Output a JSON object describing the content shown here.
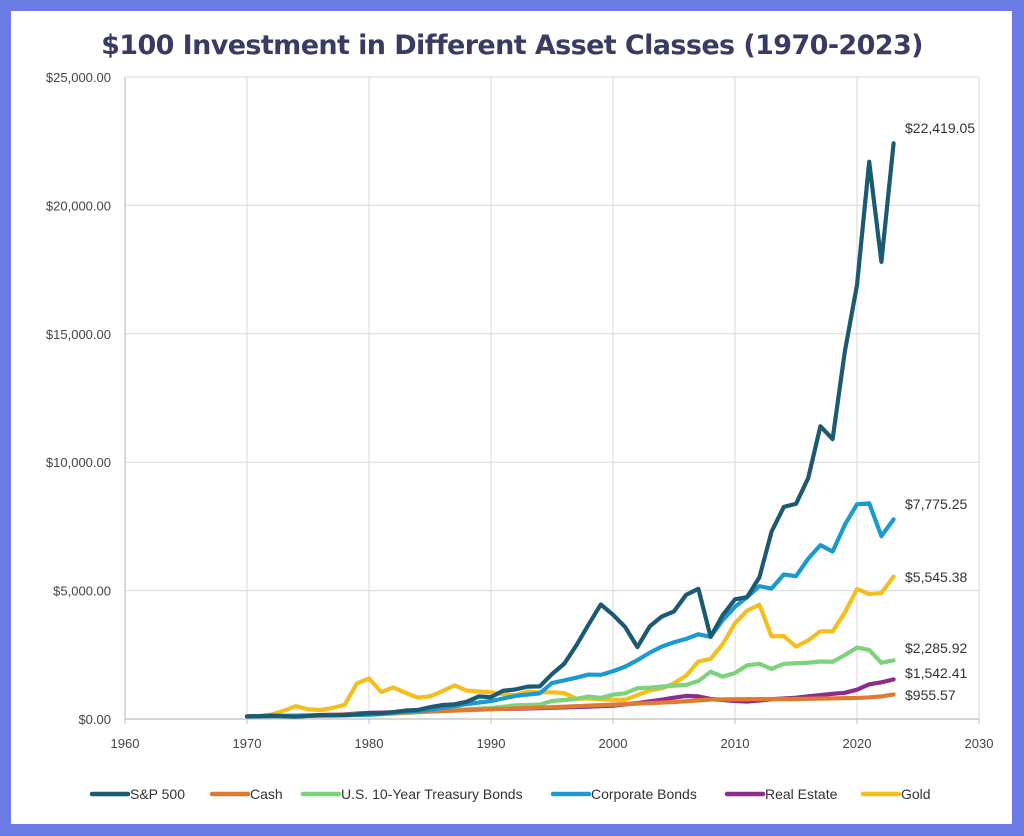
{
  "chart_data": {
    "type": "line",
    "title": "$100 Investment in Different Asset Classes (1970-2023)",
    "xlabel": "",
    "ylabel": "",
    "xlim": [
      1960,
      2030
    ],
    "ylim": [
      0,
      25000
    ],
    "xticks": [
      1960,
      1970,
      1980,
      1990,
      2000,
      2010,
      2020,
      2030
    ],
    "yticks": [
      0,
      5000,
      10000,
      15000,
      20000,
      25000
    ],
    "ytick_labels": [
      "$0.00",
      "$5,000.00",
      "$10,000.00",
      "$15,000.00",
      "$20,000.00",
      "$25,000.00"
    ],
    "grid": true,
    "legend_position": "bottom",
    "series": [
      {
        "name": "S&P 500",
        "color": "#1c5a74",
        "end_label": "$22,419.05",
        "points": [
          [
            1970,
            100
          ],
          [
            1971,
            110
          ],
          [
            1972,
            130
          ],
          [
            1973,
            110
          ],
          [
            1974,
            90
          ],
          [
            1975,
            120
          ],
          [
            1976,
            150
          ],
          [
            1977,
            140
          ],
          [
            1978,
            150
          ],
          [
            1979,
            180
          ],
          [
            1980,
            230
          ],
          [
            1981,
            220
          ],
          [
            1982,
            270
          ],
          [
            1983,
            330
          ],
          [
            1984,
            350
          ],
          [
            1985,
            460
          ],
          [
            1986,
            540
          ],
          [
            1987,
            570
          ],
          [
            1988,
            670
          ],
          [
            1989,
            880
          ],
          [
            1990,
            850
          ],
          [
            1991,
            1100
          ],
          [
            1992,
            1150
          ],
          [
            1993,
            1260
          ],
          [
            1994,
            1270
          ],
          [
            1995,
            1750
          ],
          [
            1996,
            2150
          ],
          [
            1997,
            2870
          ],
          [
            1998,
            3680
          ],
          [
            1999,
            4460
          ],
          [
            2000,
            4060
          ],
          [
            2001,
            3580
          ],
          [
            2002,
            2800
          ],
          [
            2003,
            3600
          ],
          [
            2004,
            3990
          ],
          [
            2005,
            4190
          ],
          [
            2006,
            4840
          ],
          [
            2007,
            5070
          ],
          [
            2008,
            3200
          ],
          [
            2009,
            4050
          ],
          [
            2010,
            4660
          ],
          [
            2011,
            4750
          ],
          [
            2012,
            5520
          ],
          [
            2013,
            7300
          ],
          [
            2014,
            8260
          ],
          [
            2015,
            8380
          ],
          [
            2016,
            9380
          ],
          [
            2017,
            11400
          ],
          [
            2018,
            10900
          ],
          [
            2019,
            14300
          ],
          [
            2020,
            16900
          ],
          [
            2021,
            21700
          ],
          [
            2022,
            17800
          ],
          [
            2023,
            22419.05
          ]
        ]
      },
      {
        "name": "Cash",
        "color": "#e07a2f",
        "end_label": "$955.57",
        "points": [
          [
            1970,
            100
          ],
          [
            1975,
            140
          ],
          [
            1980,
            200
          ],
          [
            1985,
            290
          ],
          [
            1990,
            380
          ],
          [
            1995,
            460
          ],
          [
            2000,
            560
          ],
          [
            2005,
            660
          ],
          [
            2008,
            760
          ],
          [
            2010,
            770
          ],
          [
            2015,
            780
          ],
          [
            2020,
            820
          ],
          [
            2021,
            840
          ],
          [
            2022,
            880
          ],
          [
            2023,
            955.57
          ]
        ]
      },
      {
        "name": "U.S. 10-Year Treasury Bonds",
        "color": "#7dd27a",
        "end_label": "$2,285.92",
        "points": [
          [
            1970,
            100
          ],
          [
            1975,
            120
          ],
          [
            1980,
            160
          ],
          [
            1985,
            290
          ],
          [
            1990,
            430
          ],
          [
            1992,
            530
          ],
          [
            1994,
            560
          ],
          [
            1995,
            700
          ],
          [
            1997,
            780
          ],
          [
            1998,
            880
          ],
          [
            1999,
            820
          ],
          [
            2000,
            950
          ],
          [
            2001,
            1000
          ],
          [
            2002,
            1200
          ],
          [
            2003,
            1220
          ],
          [
            2004,
            1260
          ],
          [
            2005,
            1300
          ],
          [
            2006,
            1330
          ],
          [
            2007,
            1480
          ],
          [
            2008,
            1840
          ],
          [
            2009,
            1650
          ],
          [
            2010,
            1790
          ],
          [
            2011,
            2090
          ],
          [
            2012,
            2150
          ],
          [
            2013,
            1950
          ],
          [
            2014,
            2150
          ],
          [
            2015,
            2170
          ],
          [
            2016,
            2190
          ],
          [
            2017,
            2240
          ],
          [
            2018,
            2230
          ],
          [
            2019,
            2490
          ],
          [
            2020,
            2780
          ],
          [
            2021,
            2690
          ],
          [
            2022,
            2190
          ],
          [
            2023,
            2285.92
          ]
        ]
      },
      {
        "name": "Corporate Bonds",
        "color": "#1a9ad1",
        "end_label": "$7,775.25",
        "points": [
          [
            1970,
            100
          ],
          [
            1975,
            130
          ],
          [
            1980,
            170
          ],
          [
            1985,
            360
          ],
          [
            1988,
            580
          ],
          [
            1990,
            700
          ],
          [
            1992,
            900
          ],
          [
            1994,
            1000
          ],
          [
            1995,
            1400
          ],
          [
            1997,
            1610
          ],
          [
            1998,
            1730
          ],
          [
            1999,
            1720
          ],
          [
            2000,
            1860
          ],
          [
            2001,
            2040
          ],
          [
            2002,
            2290
          ],
          [
            2003,
            2580
          ],
          [
            2004,
            2820
          ],
          [
            2005,
            2990
          ],
          [
            2006,
            3120
          ],
          [
            2007,
            3300
          ],
          [
            2008,
            3200
          ],
          [
            2009,
            3850
          ],
          [
            2010,
            4370
          ],
          [
            2011,
            4750
          ],
          [
            2012,
            5170
          ],
          [
            2013,
            5080
          ],
          [
            2014,
            5630
          ],
          [
            2015,
            5560
          ],
          [
            2016,
            6240
          ],
          [
            2017,
            6770
          ],
          [
            2018,
            6520
          ],
          [
            2019,
            7560
          ],
          [
            2020,
            8360
          ],
          [
            2021,
            8400
          ],
          [
            2022,
            7120
          ],
          [
            2023,
            7775.25
          ]
        ]
      },
      {
        "name": "Real Estate",
        "color": "#8e2b8e",
        "end_label": "$1,542.41",
        "points": [
          [
            1970,
            100
          ],
          [
            1972,
            120
          ],
          [
            1974,
            100
          ],
          [
            1976,
            150
          ],
          [
            1978,
            180
          ],
          [
            1980,
            240
          ],
          [
            1982,
            260
          ],
          [
            1984,
            280
          ],
          [
            1986,
            330
          ],
          [
            1988,
            370
          ],
          [
            1990,
            390
          ],
          [
            1992,
            400
          ],
          [
            1994,
            420
          ],
          [
            1996,
            450
          ],
          [
            1998,
            480
          ],
          [
            2000,
            520
          ],
          [
            2002,
            620
          ],
          [
            2004,
            750
          ],
          [
            2005,
            830
          ],
          [
            2006,
            900
          ],
          [
            2007,
            880
          ],
          [
            2008,
            780
          ],
          [
            2010,
            700
          ],
          [
            2011,
            680
          ],
          [
            2012,
            720
          ],
          [
            2013,
            770
          ],
          [
            2014,
            800
          ],
          [
            2015,
            830
          ],
          [
            2016,
            880
          ],
          [
            2017,
            930
          ],
          [
            2018,
            980
          ],
          [
            2019,
            1020
          ],
          [
            2020,
            1140
          ],
          [
            2021,
            1350
          ],
          [
            2022,
            1430
          ],
          [
            2023,
            1542.41
          ]
        ]
      },
      {
        "name": "Gold",
        "color": "#f5be1f",
        "end_label": "$5,545.38",
        "points": [
          [
            1970,
            100
          ],
          [
            1971,
            120
          ],
          [
            1972,
            170
          ],
          [
            1973,
            320
          ],
          [
            1974,
            500
          ],
          [
            1975,
            380
          ],
          [
            1976,
            350
          ],
          [
            1977,
            430
          ],
          [
            1978,
            550
          ],
          [
            1979,
            1380
          ],
          [
            1980,
            1580
          ],
          [
            1981,
            1050
          ],
          [
            1982,
            1230
          ],
          [
            1983,
            1020
          ],
          [
            1984,
            830
          ],
          [
            1985,
            880
          ],
          [
            1986,
            1080
          ],
          [
            1987,
            1310
          ],
          [
            1988,
            1110
          ],
          [
            1989,
            1070
          ],
          [
            1990,
            1040
          ],
          [
            1991,
            970
          ],
          [
            1992,
            930
          ],
          [
            1993,
            1070
          ],
          [
            1994,
            1040
          ],
          [
            1995,
            1040
          ],
          [
            1996,
            1010
          ],
          [
            1997,
            790
          ],
          [
            1998,
            790
          ],
          [
            1999,
            770
          ],
          [
            2000,
            750
          ],
          [
            2001,
            750
          ],
          [
            2002,
            930
          ],
          [
            2003,
            1110
          ],
          [
            2004,
            1190
          ],
          [
            2005,
            1390
          ],
          [
            2006,
            1690
          ],
          [
            2007,
            2240
          ],
          [
            2008,
            2340
          ],
          [
            2009,
            2920
          ],
          [
            2010,
            3730
          ],
          [
            2011,
            4220
          ],
          [
            2012,
            4450
          ],
          [
            2013,
            3220
          ],
          [
            2014,
            3230
          ],
          [
            2015,
            2820
          ],
          [
            2016,
            3060
          ],
          [
            2017,
            3420
          ],
          [
            2018,
            3410
          ],
          [
            2019,
            4140
          ],
          [
            2020,
            5060
          ],
          [
            2021,
            4870
          ],
          [
            2022,
            4900
          ],
          [
            2023,
            5545.38
          ]
        ]
      }
    ]
  }
}
